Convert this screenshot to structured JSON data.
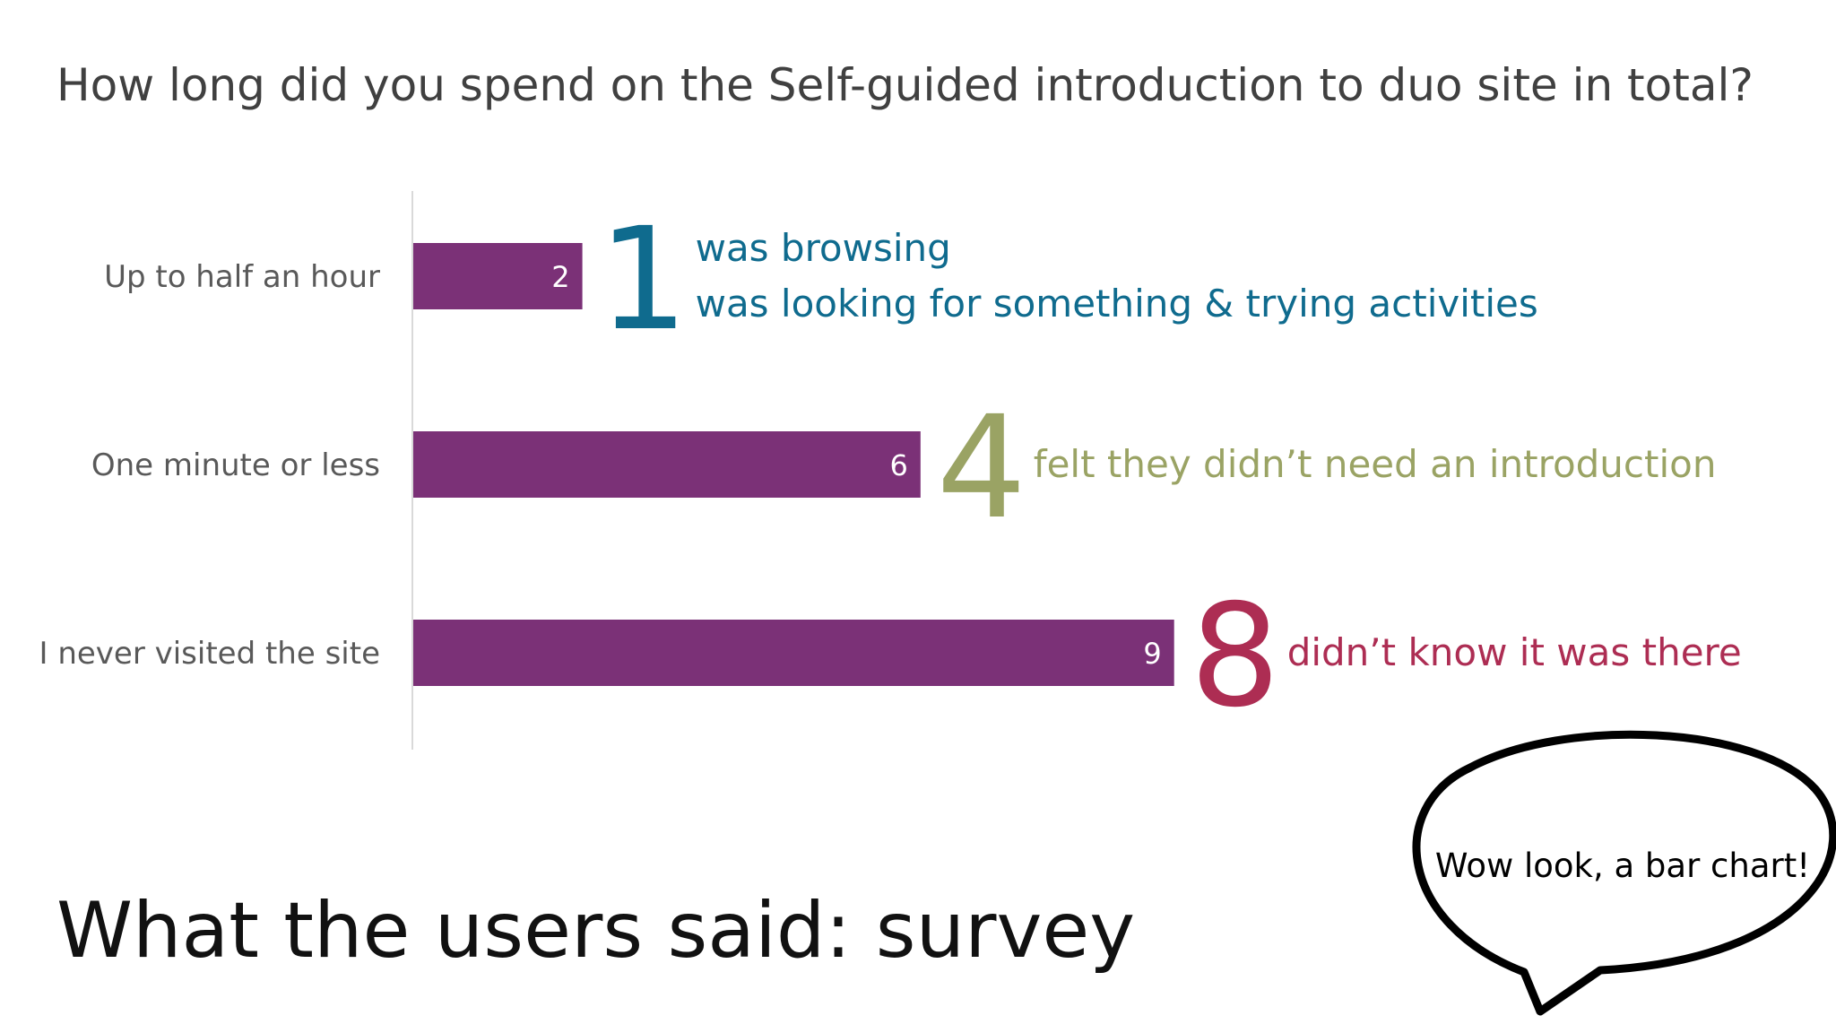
{
  "question": "How long did you spend on the Self-guided introduction to duo site in total?",
  "footer_title": "What the users said: survey",
  "speech_bubble": "Wow look, a bar chart!",
  "colors": {
    "bar": "#7b3177",
    "callout_blue": "#0f6b8e",
    "callout_green": "#9aa364",
    "callout_red": "#ad2d53"
  },
  "chart_data": {
    "type": "bar",
    "orientation": "horizontal",
    "categories": [
      "Up to half an hour",
      "One minute or less",
      "I never visited the site"
    ],
    "values": [
      2,
      6,
      9
    ],
    "xlim": [
      0,
      9
    ],
    "grid": false,
    "legend": "none"
  },
  "callouts": [
    {
      "number": "1",
      "lines": [
        "was browsing",
        "was looking for something & trying activities"
      ],
      "color": "#0f6b8e"
    },
    {
      "number": "4",
      "lines": [
        "felt they didn’t need an introduction"
      ],
      "color": "#9aa364"
    },
    {
      "number": "8",
      "lines": [
        "didn’t know it was there"
      ],
      "color": "#ad2d53"
    }
  ]
}
